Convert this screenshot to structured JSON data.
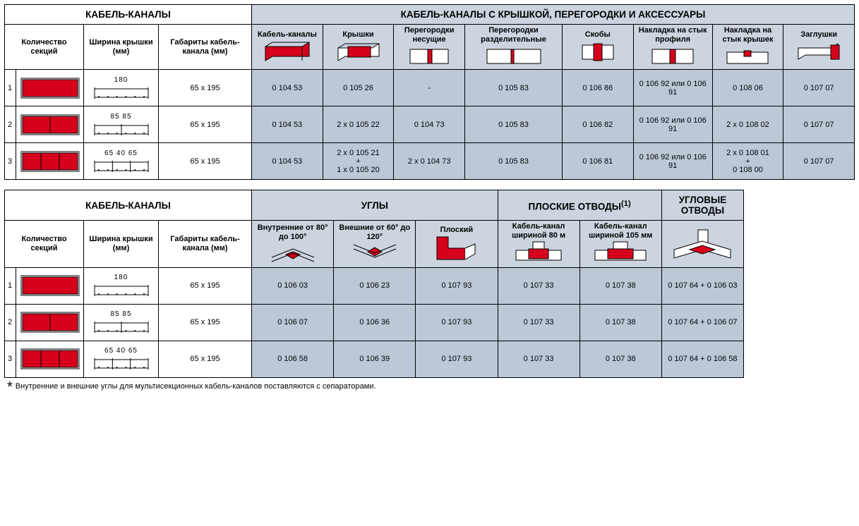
{
  "colors": {
    "header_blue": "#cbd4df",
    "data_blue": "#bcc8d6",
    "red": "#d6001c",
    "outline": "#000000",
    "white": "#ffffff"
  },
  "table1": {
    "group_left": "КАБЕЛЬ-КАНАЛЫ",
    "group_right": "КАБЕЛЬ-КАНАЛЫ С КРЫШКОЙ, ПЕРЕГОРОДКИ И АКСЕССУАРЫ",
    "col_left": [
      "Количество секций",
      "Ширина крышки (мм)",
      "Габариты кабель-канала (мм)"
    ],
    "col_right": [
      "Кабель-каналы",
      "Крышки",
      "Перегородки несущие",
      "Перегородки разделительные",
      "Скобы",
      "Накладка на стык профиля",
      "Накладка на стык крышек",
      "Заглушки"
    ],
    "rows": [
      {
        "n": "1",
        "width_dims": "180",
        "size": "65 x 195",
        "cells": [
          "0 104 53",
          "0 105 26",
          "-",
          "0 105 83",
          "0 106 86",
          "0 106 92 или 0 106 91",
          "0 108 06",
          "0 107 07"
        ]
      },
      {
        "n": "2",
        "width_dims": "85  85",
        "size": "65 x 195",
        "cells": [
          "0 104 53",
          "2 x 0 105 22",
          "0 104 73",
          "0 105 83",
          "0 106 82",
          "0 106 92 или 0 106 91",
          "2 x 0 108 02",
          "0 107 07"
        ]
      },
      {
        "n": "3",
        "width_dims": "65 40 65",
        "size": "65 x 195",
        "cells": [
          "0 104 53",
          "2 x 0 105 21\n+\n1 x 0 105 20",
          "2 x 0 104 73",
          "0 105 83",
          "0 106 81",
          "0 106 92 или 0 106 91",
          "2 x 0 108 01\n+\n0 108 00",
          "0 107 07"
        ]
      }
    ]
  },
  "table2": {
    "group_left": "КАБЕЛЬ-КАНАЛЫ",
    "groups_right": [
      "УГЛЫ",
      "ПЛОСКИЕ ОТВОДЫ",
      "УГЛОВЫЕ ОТВОДЫ"
    ],
    "flat_note_sup": "(1)",
    "col_left": [
      "Количество секций",
      "Ширина крышки (мм)",
      "Габариты кабель-канала (мм)"
    ],
    "col_right": [
      "Внутренние от 80° до 100°",
      "Внешние от 60° до 120°",
      "Плоский",
      "Кабель-канал шириной 80 м",
      "Кабель-канал шириной 105 мм",
      ""
    ],
    "rows": [
      {
        "n": "1",
        "width_dims": "180",
        "size": "65 x 195",
        "cells": [
          "0 106 03",
          "0 106 23",
          "0 107 93",
          "0 107 33",
          "0 107 38",
          "0 107 64 + 0 106 03"
        ]
      },
      {
        "n": "2",
        "width_dims": "85  85",
        "size": "65 x 195",
        "cells": [
          "0 106 07",
          "0 106 36",
          "0 107 93",
          "0 107 33",
          "0 107 38",
          "0 107 64 + 0 106 07"
        ]
      },
      {
        "n": "3",
        "width_dims": "65 40 65",
        "size": "65 x 195",
        "cells": [
          "0 106 58",
          "0 106 39",
          "0 107 93",
          "0 107 33",
          "0 107 38",
          "0 107 64 + 0 106 58"
        ]
      }
    ]
  },
  "footnote": "Внутренние и внешние углы для мультисекционных кабель-каналов поставляются с сепараторами."
}
